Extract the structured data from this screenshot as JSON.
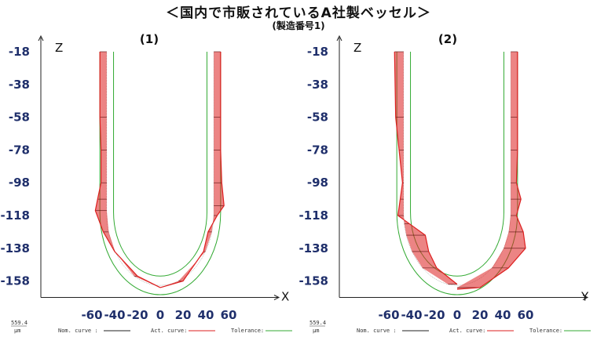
{
  "header": {
    "title": "＜国内で市販されているA社製ベッセル＞",
    "subtitle": "(製造番号1)"
  },
  "legend": {
    "nominal": "Nom. curve :",
    "actual": "Act. curve:",
    "tolerance": "Tolerance:"
  },
  "scale_label": "559.4",
  "scale_unit": "μm",
  "colors": {
    "nominal": "#222222",
    "actual": "#dd1f1f",
    "tolerance": "#33aa33",
    "tick": "#1f2f6b"
  },
  "chart_data": [
    {
      "type": "line",
      "title": "(1)",
      "xlabel": "X",
      "ylabel": "Z",
      "xlim": [
        -70,
        70
      ],
      "ylim": [
        -168,
        -18
      ],
      "x_ticks": [
        "-60",
        "-40",
        "-20",
        "0",
        "20",
        "40",
        "60"
      ],
      "y_ticks": [
        "-18",
        "-38",
        "-58",
        "-78",
        "-98",
        "-118",
        "-138",
        "-158"
      ],
      "nominal_half_width": 47,
      "nominal_arc_bottom": -116,
      "tolerance_offset": 6,
      "series": [
        {
          "name": "Act. curve",
          "side": "left",
          "x": [
            -53,
            -53,
            -52,
            -52,
            -55,
            -57,
            -50,
            -40,
            -20,
            0
          ],
          "y": [
            -18,
            -58,
            -78,
            -98,
            -108,
            -115,
            -128,
            -140,
            -155,
            -162
          ]
        },
        {
          "name": "Act. curve",
          "side": "right",
          "x": [
            53,
            53,
            53,
            54,
            56,
            50,
            42,
            38,
            20,
            0
          ],
          "y": [
            -18,
            -58,
            -78,
            -98,
            -112,
            -118,
            -128,
            -140,
            -158,
            -162
          ]
        }
      ]
    },
    {
      "type": "line",
      "title": "(2)",
      "xlabel": "Y",
      "ylabel": "Z",
      "xlim": [
        -70,
        70
      ],
      "ylim": [
        -168,
        -18
      ],
      "x_ticks": [
        "-60",
        "-40",
        "-20",
        "0",
        "20",
        "40",
        "60"
      ],
      "y_ticks": [
        "-18",
        "-38",
        "-58",
        "-78",
        "-98",
        "-118",
        "-138",
        "-158"
      ],
      "nominal_half_width": 47,
      "nominal_arc_bottom": -116,
      "tolerance_offset": 6,
      "series": [
        {
          "name": "Act. curve",
          "side": "left",
          "x": [
            -55,
            -54,
            -51,
            -48,
            -50,
            -52,
            -42,
            -28,
            -25,
            -18,
            0
          ],
          "y": [
            -18,
            -58,
            -78,
            -98,
            -108,
            -118,
            -123,
            -130,
            -140,
            -150,
            -160
          ]
        },
        {
          "name": "Act. curve",
          "side": "right",
          "x": [
            53,
            53,
            53,
            52,
            56,
            52,
            58,
            60,
            45,
            20,
            0
          ],
          "y": [
            -18,
            -58,
            -78,
            -98,
            -108,
            -118,
            -128,
            -138,
            -150,
            -162,
            -163
          ]
        }
      ]
    }
  ]
}
